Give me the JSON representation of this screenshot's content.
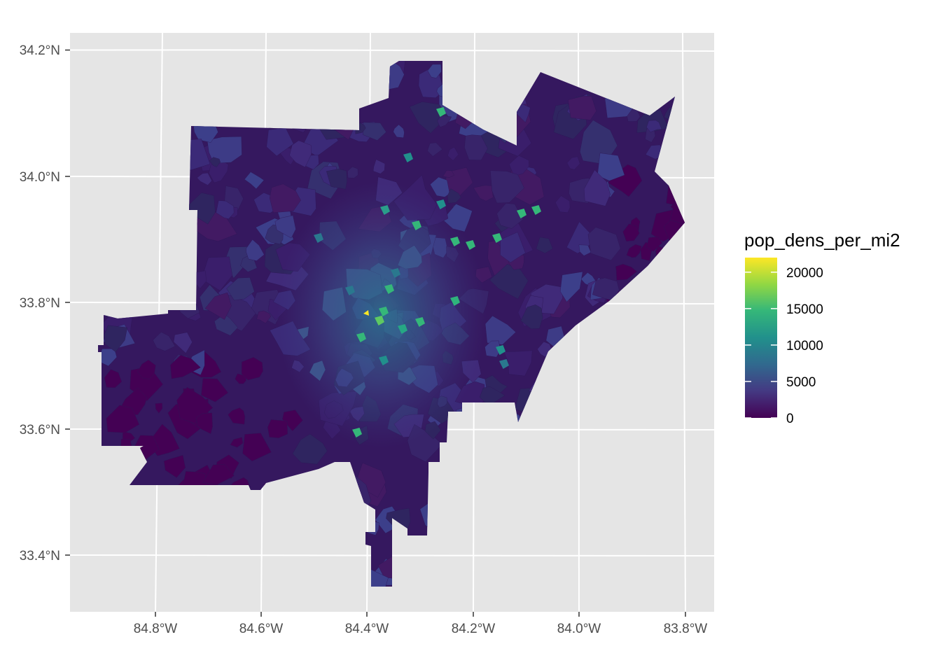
{
  "map": {
    "y_axis": {
      "ticks": [
        {
          "label": "34.2°N",
          "value": 34.2
        },
        {
          "label": "34.0°N",
          "value": 34.0
        },
        {
          "label": "33.8°N",
          "value": 33.8
        },
        {
          "label": "33.6°N",
          "value": 33.6
        },
        {
          "label": "33.4°N",
          "value": 33.4
        }
      ]
    },
    "x_axis": {
      "ticks": [
        {
          "label": "84.8°W",
          "value": -84.8
        },
        {
          "label": "84.6°W",
          "value": -84.6
        },
        {
          "label": "84.4°W",
          "value": -84.4
        },
        {
          "label": "84.2°W",
          "value": -84.2
        },
        {
          "label": "84.0°W",
          "value": -84.0
        },
        {
          "label": "83.8°W",
          "value": -83.8
        }
      ]
    },
    "legend": {
      "title": "pop_dens_per_mi2",
      "labels": [
        "20000",
        "15000",
        "10000",
        "5000",
        "0"
      ],
      "label_values": [
        20000,
        15000,
        10000,
        5000,
        0
      ],
      "max_value": 22000,
      "colors": [
        "#fde725",
        "#8fd744",
        "#35b779",
        "#21908c",
        "#31688e",
        "#443a83",
        "#440154"
      ]
    },
    "colors": {
      "panel_background": "#e5e5e5",
      "grid_line": "#ffffff",
      "low_density": "#440154",
      "base_density": "#35185f",
      "mid_density": "#3b3b85",
      "high_density": "#21908c",
      "peak_density": "#fde725"
    }
  }
}
